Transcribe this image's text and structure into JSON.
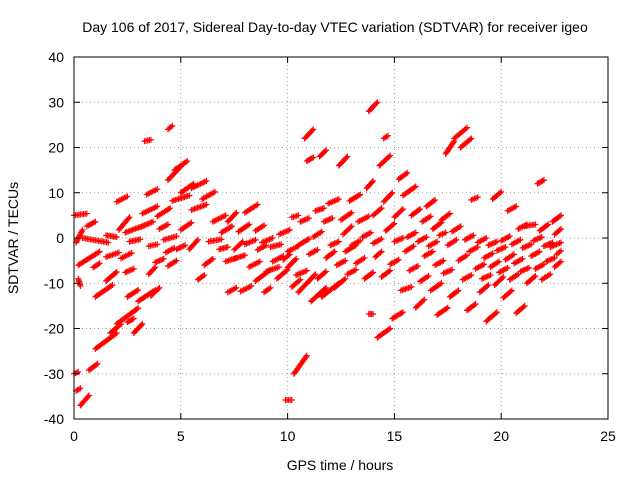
{
  "chart_data": {
    "type": "scatter",
    "title": "Day 106 of 2017, Sidereal Day-to-day VTEC variation (SDTVAR) for receiver igeo",
    "xlabel": "GPS time / hours",
    "ylabel": "SDTVAR / TECUs",
    "xlim": [
      0,
      25
    ],
    "ylim": [
      -40,
      40
    ],
    "xticks": [
      0,
      5,
      10,
      15,
      20,
      25
    ],
    "yticks": [
      -40,
      -30,
      -20,
      -10,
      0,
      10,
      20,
      30,
      40
    ],
    "grid": true,
    "marker": "+",
    "color": "#ff0000",
    "segments": [
      [
        0.0,
        -30.0,
        0.2,
        -29.6
      ],
      [
        0.1,
        -33.8,
        0.3,
        -33.2
      ],
      [
        0.3,
        -37.0,
        0.7,
        -34.8
      ],
      [
        0.1,
        -1.0,
        0.4,
        1.8
      ],
      [
        0.0,
        5.0,
        0.6,
        5.4
      ],
      [
        0.2,
        -9.0,
        0.3,
        -10.6
      ],
      [
        0.2,
        -6.0,
        1.2,
        -3.0
      ],
      [
        0.4,
        0.0,
        1.6,
        -1.0
      ],
      [
        0.6,
        2.6,
        1.0,
        3.6
      ],
      [
        0.9,
        -6.5,
        1.2,
        -5.6
      ],
      [
        0.7,
        -29.2,
        1.1,
        -27.8
      ],
      [
        1.0,
        -24.5,
        2.0,
        -21.0
      ],
      [
        1.0,
        -13.0,
        1.8,
        -10.4
      ],
      [
        1.5,
        -4.2,
        2.1,
        -3.2
      ],
      [
        1.5,
        -9.5,
        2.0,
        -7.5
      ],
      [
        1.5,
        0.6,
        2.0,
        0.2
      ],
      [
        1.7,
        -21.0,
        2.2,
        -19.0
      ],
      [
        2.0,
        -19.0,
        3.0,
        -15.5
      ],
      [
        2.2,
        -4.5,
        2.7,
        -3.3
      ],
      [
        2.5,
        -18.6,
        2.8,
        -17.8
      ],
      [
        2.4,
        -7.6,
        2.8,
        -6.8
      ],
      [
        2.0,
        8.0,
        2.5,
        9.2
      ],
      [
        2.1,
        1.8,
        2.6,
        4.6
      ],
      [
        2.4,
        1.2,
        3.3,
        2.8
      ],
      [
        2.6,
        -0.8,
        3.1,
        -0.3
      ],
      [
        2.5,
        -13.0,
        3.0,
        -11.5
      ],
      [
        2.8,
        -21.0,
        3.2,
        -19.0
      ],
      [
        3.0,
        -14.0,
        3.8,
        -11.5
      ],
      [
        3.1,
        2.4,
        3.7,
        3.6
      ],
      [
        3.3,
        21.4,
        3.6,
        21.7
      ],
      [
        3.4,
        9.6,
        3.9,
        10.8
      ],
      [
        3.2,
        5.4,
        3.9,
        7.0
      ],
      [
        3.5,
        -8.0,
        3.8,
        -6.5
      ],
      [
        3.5,
        -1.8,
        3.9,
        -1.4
      ],
      [
        3.6,
        -12.8,
        4.0,
        -11.0
      ],
      [
        3.8,
        -5.4,
        4.2,
        -4.6
      ],
      [
        3.9,
        4.8,
        4.5,
        6.6
      ],
      [
        4.0,
        2.0,
        4.4,
        3.0
      ],
      [
        4.2,
        -0.4,
        4.8,
        0.4
      ],
      [
        4.3,
        -3.2,
        4.7,
        -2.2
      ],
      [
        4.4,
        24.0,
        4.6,
        24.8
      ],
      [
        4.4,
        12.8,
        5.0,
        15.8
      ],
      [
        4.4,
        -6.2,
        4.8,
        -5.0
      ],
      [
        4.6,
        8.2,
        5.4,
        9.4
      ],
      [
        4.7,
        15.0,
        5.3,
        17.0
      ],
      [
        4.8,
        -2.5,
        5.2,
        -1.6
      ],
      [
        5.0,
        10.0,
        5.6,
        12.0
      ],
      [
        5.0,
        1.8,
        5.5,
        3.4
      ],
      [
        5.4,
        -2.5,
        5.8,
        -0.4
      ],
      [
        5.5,
        11.0,
        6.2,
        12.6
      ],
      [
        5.5,
        6.2,
        6.2,
        7.4
      ],
      [
        5.8,
        -9.2,
        6.1,
        -8.2
      ],
      [
        6.0,
        8.6,
        6.6,
        10.2
      ],
      [
        6.1,
        -6.0,
        6.5,
        -4.6
      ],
      [
        6.3,
        -0.8,
        6.9,
        -0.3
      ],
      [
        6.5,
        3.6,
        7.1,
        5.0
      ],
      [
        6.8,
        -2.5,
        7.2,
        -2.0
      ],
      [
        6.9,
        1.2,
        7.4,
        2.6
      ],
      [
        7.1,
        -5.2,
        7.6,
        -4.4
      ],
      [
        7.2,
        3.6,
        7.6,
        5.6
      ],
      [
        7.2,
        -12.0,
        7.6,
        -11.0
      ],
      [
        7.5,
        -2.6,
        7.9,
        -0.8
      ],
      [
        7.5,
        -4.6,
        8.0,
        -3.8
      ],
      [
        7.7,
        1.4,
        8.2,
        3.0
      ],
      [
        7.8,
        -11.8,
        8.3,
        -10.6
      ],
      [
        8.0,
        -1.4,
        8.5,
        -0.4
      ],
      [
        8.0,
        5.6,
        8.6,
        7.4
      ],
      [
        8.2,
        -6.4,
        8.7,
        -5.2
      ],
      [
        8.5,
        1.6,
        8.9,
        2.8
      ],
      [
        8.6,
        -2.6,
        9.0,
        -1.6
      ],
      [
        8.5,
        -9.5,
        9.2,
        -7.0
      ],
      [
        8.8,
        -1.0,
        9.3,
        0.0
      ],
      [
        8.9,
        -12.0,
        9.2,
        -11.0
      ],
      [
        9.0,
        -7.4,
        9.6,
        -6.4
      ],
      [
        9.2,
        -2.0,
        9.7,
        -1.4
      ],
      [
        9.3,
        -5.2,
        9.8,
        -4.0
      ],
      [
        9.5,
        -9.0,
        10.0,
        -7.0
      ],
      [
        9.6,
        0.8,
        10.1,
        1.8
      ],
      [
        9.8,
        -4.8,
        10.1,
        -3.6
      ],
      [
        9.9,
        -35.8,
        10.2,
        -35.8
      ],
      [
        10.0,
        -6.5,
        10.4,
        -4.6
      ],
      [
        10.2,
        4.6,
        10.5,
        5.0
      ],
      [
        10.0,
        -3.0,
        10.5,
        -1.8
      ],
      [
        10.2,
        -10.8,
        10.6,
        -9.2
      ],
      [
        10.3,
        -30.0,
        10.9,
        -26.0
      ],
      [
        10.4,
        -8.2,
        10.9,
        -7.2
      ],
      [
        10.5,
        -1.6,
        11.0,
        -0.2
      ],
      [
        10.5,
        -12.0,
        11.3,
        -8.0
      ],
      [
        10.6,
        3.6,
        11.0,
        4.4
      ],
      [
        10.8,
        22.0,
        11.2,
        24.0
      ],
      [
        10.9,
        17.0,
        11.2,
        17.8
      ],
      [
        11.0,
        -3.6,
        11.4,
        -2.6
      ],
      [
        11.1,
        -14.0,
        11.8,
        -11.0
      ],
      [
        11.2,
        0.2,
        11.6,
        1.4
      ],
      [
        11.3,
        6.0,
        11.7,
        6.6
      ],
      [
        11.4,
        -9.0,
        11.8,
        -7.4
      ],
      [
        11.5,
        18.0,
        11.8,
        19.4
      ],
      [
        11.6,
        -13.0,
        12.4,
        -10.0
      ],
      [
        11.7,
        3.6,
        12.1,
        4.4
      ],
      [
        11.8,
        -4.4,
        12.2,
        -3.0
      ],
      [
        11.9,
        7.6,
        12.4,
        8.6
      ],
      [
        12.0,
        -1.6,
        12.4,
        -0.8
      ],
      [
        12.2,
        -11.0,
        12.7,
        -9.0
      ],
      [
        12.3,
        -6.0,
        12.7,
        -5.0
      ],
      [
        12.4,
        16.0,
        12.8,
        18.0
      ],
      [
        12.5,
        4.0,
        13.0,
        5.6
      ],
      [
        12.6,
        0.8,
        13.0,
        2.6
      ],
      [
        12.7,
        -3.0,
        13.2,
        -1.6
      ],
      [
        12.8,
        -8.0,
        13.2,
        -7.0
      ],
      [
        12.9,
        8.2,
        13.4,
        9.6
      ],
      [
        13.0,
        -1.6,
        13.4,
        -0.6
      ],
      [
        13.2,
        -5.6,
        13.6,
        -4.4
      ],
      [
        13.3,
        3.6,
        13.8,
        4.8
      ],
      [
        13.5,
        0.2,
        13.9,
        1.2
      ],
      [
        13.6,
        -9.0,
        14.0,
        -7.6
      ],
      [
        13.7,
        11.0,
        14.0,
        12.6
      ],
      [
        13.8,
        28.0,
        14.2,
        30.0
      ],
      [
        13.8,
        -16.8,
        14.0,
        -16.8
      ],
      [
        14.0,
        5.0,
        14.4,
        6.6
      ],
      [
        14.0,
        -1.2,
        14.4,
        -0.2
      ],
      [
        14.1,
        -4.2,
        14.4,
        -3.0
      ],
      [
        14.2,
        -22.0,
        14.8,
        -20.0
      ],
      [
        14.3,
        16.0,
        14.8,
        18.2
      ],
      [
        14.4,
        -8.6,
        14.8,
        -7.2
      ],
      [
        14.5,
        22.0,
        14.7,
        22.6
      ],
      [
        14.5,
        8.0,
        14.9,
        10.0
      ],
      [
        14.6,
        1.6,
        15.0,
        3.2
      ],
      [
        14.8,
        -5.8,
        15.2,
        -4.8
      ],
      [
        14.9,
        -17.8,
        15.4,
        -16.4
      ],
      [
        15.0,
        4.6,
        15.4,
        6.4
      ],
      [
        15.0,
        -0.8,
        15.4,
        0.0
      ],
      [
        15.2,
        13.0,
        15.6,
        14.4
      ],
      [
        15.3,
        -11.6,
        15.8,
        -10.8
      ],
      [
        15.4,
        9.4,
        16.0,
        11.4
      ],
      [
        15.5,
        -3.0,
        15.9,
        -1.8
      ],
      [
        15.6,
        0.2,
        16.0,
        1.2
      ],
      [
        15.7,
        -7.2,
        16.1,
        -6.2
      ],
      [
        15.8,
        5.0,
        16.2,
        6.4
      ],
      [
        16.0,
        -15.4,
        16.4,
        -13.6
      ],
      [
        16.1,
        -0.8,
        16.5,
        0.2
      ],
      [
        16.2,
        -9.6,
        16.6,
        -8.4
      ],
      [
        16.3,
        3.6,
        16.7,
        4.8
      ],
      [
        16.4,
        -4.0,
        16.8,
        -3.0
      ],
      [
        16.5,
        7.0,
        16.9,
        8.4
      ],
      [
        16.6,
        -1.8,
        17.0,
        -0.8
      ],
      [
        16.7,
        -11.6,
        17.2,
        -10.0
      ],
      [
        16.8,
        2.0,
        17.2,
        3.4
      ],
      [
        16.9,
        -6.0,
        17.3,
        -5.0
      ],
      [
        17.0,
        -17.0,
        17.5,
        -15.4
      ],
      [
        17.1,
        0.6,
        17.4,
        1.2
      ],
      [
        17.2,
        4.0,
        17.6,
        5.4
      ],
      [
        17.3,
        -7.8,
        17.7,
        -7.0
      ],
      [
        17.4,
        18.6,
        17.8,
        21.4
      ],
      [
        17.5,
        -1.6,
        17.9,
        -0.4
      ],
      [
        17.6,
        -13.0,
        18.0,
        -11.6
      ],
      [
        17.7,
        1.4,
        18.1,
        2.6
      ],
      [
        17.8,
        22.0,
        18.4,
        24.4
      ],
      [
        18.0,
        -5.0,
        18.4,
        -3.8
      ],
      [
        18.1,
        20.0,
        18.6,
        22.0
      ],
      [
        18.2,
        -9.2,
        18.6,
        -8.2
      ],
      [
        18.3,
        -0.4,
        18.7,
        0.6
      ],
      [
        18.4,
        -16.0,
        18.8,
        -14.6
      ],
      [
        18.5,
        -3.0,
        18.9,
        -2.0
      ],
      [
        18.6,
        8.4,
        18.9,
        9.0
      ],
      [
        18.8,
        -6.8,
        19.2,
        -5.8
      ],
      [
        18.9,
        -1.0,
        19.3,
        0.0
      ],
      [
        19.0,
        -12.0,
        19.4,
        -10.4
      ],
      [
        19.1,
        -9.0,
        19.5,
        -8.2
      ],
      [
        19.2,
        -4.4,
        19.6,
        -3.4
      ],
      [
        19.3,
        -18.4,
        19.8,
        -16.4
      ],
      [
        19.4,
        -1.6,
        19.8,
        -0.8
      ],
      [
        19.5,
        -6.4,
        19.9,
        -5.2
      ],
      [
        19.6,
        8.6,
        20.0,
        10.2
      ],
      [
        19.7,
        -10.4,
        20.1,
        -8.6
      ],
      [
        19.8,
        -2.8,
        20.2,
        -2.0
      ],
      [
        19.9,
        -7.6,
        20.3,
        -6.6
      ],
      [
        20.0,
        -0.6,
        20.4,
        0.4
      ],
      [
        20.1,
        -13.2,
        20.5,
        -11.6
      ],
      [
        20.2,
        -4.8,
        20.6,
        -3.6
      ],
      [
        20.3,
        6.0,
        20.7,
        7.0
      ],
      [
        20.4,
        -9.2,
        20.8,
        -8.0
      ],
      [
        20.5,
        -1.4,
        20.9,
        -0.4
      ],
      [
        20.6,
        -5.6,
        21.0,
        -4.6
      ],
      [
        20.7,
        -16.6,
        21.1,
        -15.0
      ],
      [
        20.8,
        2.0,
        21.2,
        3.0
      ],
      [
        20.9,
        -7.4,
        21.3,
        -6.6
      ],
      [
        21.0,
        -2.2,
        21.4,
        -1.4
      ],
      [
        21.1,
        2.6,
        21.6,
        3.0
      ],
      [
        21.2,
        -10.0,
        21.6,
        -8.4
      ],
      [
        21.4,
        -4.0,
        21.8,
        -3.0
      ],
      [
        21.5,
        -0.6,
        21.9,
        0.2
      ],
      [
        21.6,
        -6.8,
        22.0,
        -5.8
      ],
      [
        21.7,
        12.0,
        22.0,
        12.8
      ],
      [
        21.8,
        1.6,
        22.2,
        3.0
      ],
      [
        21.9,
        -9.2,
        22.3,
        -8.0
      ],
      [
        22.0,
        -1.8,
        22.4,
        -1.0
      ],
      [
        22.1,
        -5.2,
        22.5,
        -4.4
      ],
      [
        22.3,
        -2.0,
        22.8,
        -1.0
      ],
      [
        22.4,
        3.6,
        22.8,
        5.0
      ],
      [
        22.5,
        -6.4,
        22.8,
        -5.2
      ],
      [
        22.5,
        0.8,
        22.8,
        2.0
      ],
      [
        22.6,
        -3.6,
        22.8,
        -2.8
      ]
    ]
  }
}
